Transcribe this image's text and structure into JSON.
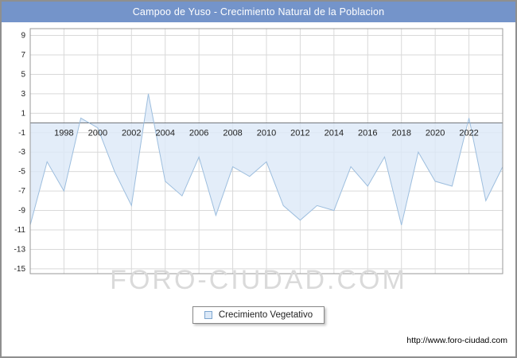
{
  "chart_data": {
    "type": "area",
    "title": "Campoo de Yuso - Crecimiento Natural de la Poblacion",
    "legend": [
      "Crecimiento Vegetativo"
    ],
    "x": [
      1996,
      1997,
      1998,
      1999,
      2000,
      2001,
      2002,
      2003,
      2004,
      2005,
      2006,
      2007,
      2008,
      2009,
      2010,
      2011,
      2012,
      2013,
      2014,
      2015,
      2016,
      2017,
      2018,
      2019,
      2020,
      2021,
      2022,
      2023,
      2024
    ],
    "series": [
      {
        "name": "Crecimiento Vegetativo",
        "values": [
          -10.5,
          -4,
          -7,
          0.5,
          -0.5,
          -5,
          -8.5,
          3,
          -6,
          -7.5,
          -3.5,
          -9.5,
          -4.5,
          -5.5,
          -4,
          -8.5,
          -10,
          -8.5,
          -9,
          -4.5,
          -6.5,
          -3.5,
          -10.5,
          -3,
          -6,
          -6.5,
          0.5,
          -8,
          -4.5
        ]
      }
    ],
    "xlabel": "",
    "ylabel": "",
    "ylim": [
      -15,
      9
    ],
    "yticks": [
      9,
      7,
      5,
      3,
      1,
      -1,
      -3,
      -5,
      -7,
      -9,
      -11,
      -13,
      -15
    ],
    "xticks": [
      1998,
      2000,
      2002,
      2004,
      2006,
      2008,
      2010,
      2012,
      2014,
      2016,
      2018,
      2020,
      2022
    ],
    "grid": true,
    "legend_position": "bottom",
    "colors": {
      "title_bg": "#7494ca",
      "area_fill": "#dce9f8",
      "area_stroke": "#9dbede",
      "grid_line": "#d9d9d9",
      "plot_border": "#999999",
      "zero_line": "#2b2b2b"
    }
  },
  "watermark": "FORO-CIUDAD.COM",
  "footer": {
    "url": "http://www.foro-ciudad.com"
  }
}
